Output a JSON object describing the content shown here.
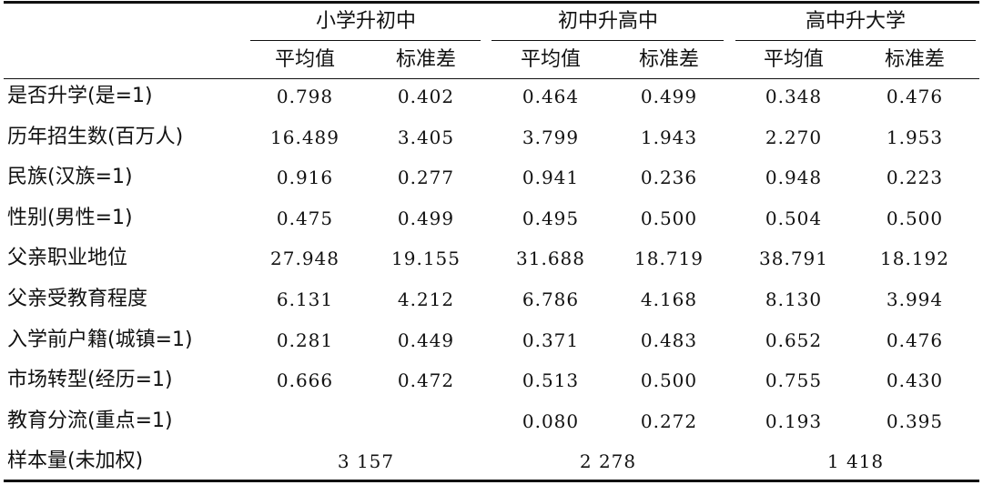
{
  "table": {
    "groups": [
      "小学升初中",
      "初中升高中",
      "高中升大学"
    ],
    "subheaders": [
      "平均值",
      "标准差",
      "平均值",
      "标准差",
      "平均值",
      "标准差"
    ],
    "rows": [
      {
        "label": "是否升学(是=1)",
        "values": [
          "0.798",
          "0.402",
          "0.464",
          "0.499",
          "0.348",
          "0.476"
        ]
      },
      {
        "label": "历年招生数(百万人)",
        "values": [
          "16.489",
          "3.405",
          "3.799",
          "1.943",
          "2.270",
          "1.953"
        ]
      },
      {
        "label": "民族(汉族=1)",
        "values": [
          "0.916",
          "0.277",
          "0.941",
          "0.236",
          "0.948",
          "0.223"
        ]
      },
      {
        "label": "性别(男性=1)",
        "values": [
          "0.475",
          "0.499",
          "0.495",
          "0.500",
          "0.504",
          "0.500"
        ]
      },
      {
        "label": "父亲职业地位",
        "values": [
          "27.948",
          "19.155",
          "31.688",
          "18.719",
          "38.791",
          "18.192"
        ]
      },
      {
        "label": "父亲受教育程度",
        "values": [
          "6.131",
          "4.212",
          "6.786",
          "4.168",
          "8.130",
          "3.994"
        ]
      },
      {
        "label": "入学前户籍(城镇=1)",
        "values": [
          "0.281",
          "0.449",
          "0.371",
          "0.483",
          "0.652",
          "0.476"
        ]
      },
      {
        "label": "市场转型(经历=1)",
        "values": [
          "0.666",
          "0.472",
          "0.513",
          "0.500",
          "0.755",
          "0.430"
        ]
      },
      {
        "label": "教育分流(重点=1)",
        "values": [
          null,
          null,
          "0.080",
          "0.272",
          "0.193",
          "0.395"
        ]
      }
    ],
    "sample": {
      "label": "样本量(未加权)",
      "values": [
        "3 157",
        "2 278",
        "1 418"
      ]
    }
  }
}
